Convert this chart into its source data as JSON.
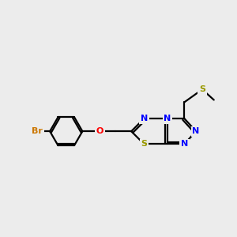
{
  "background_color": "#ececec",
  "bond_color": "#000000",
  "N_color": "#0000ff",
  "S_color": "#999900",
  "O_color": "#ff0000",
  "Br_color": "#cc7700",
  "figsize": [
    3.0,
    3.0
  ],
  "dpi": 100,
  "xlim": [
    0,
    10
  ],
  "ylim": [
    0,
    10
  ]
}
